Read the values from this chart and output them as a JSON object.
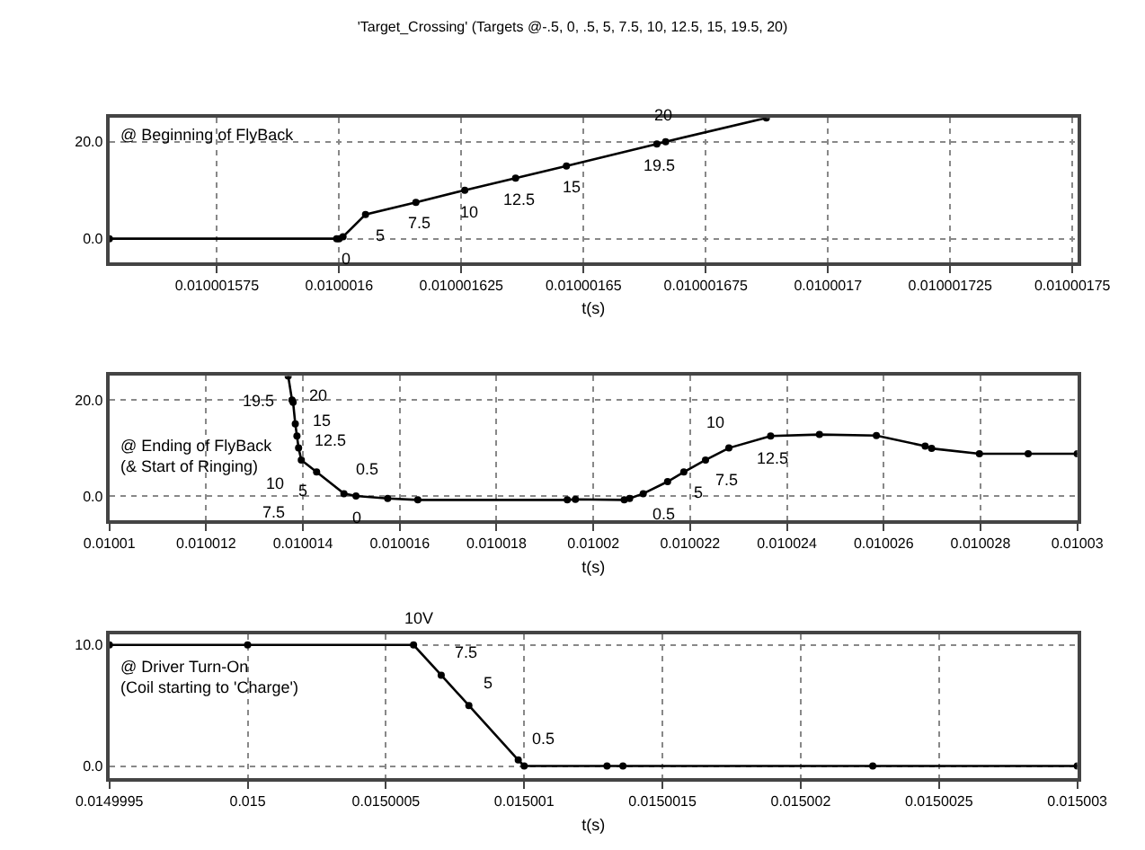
{
  "chart_data": [
    {
      "type": "line",
      "title": "'Target_Crossing' (Targets @-.5, 0, .5, 5, 7.5, 10, 12.5, 15, 19.5, 20)",
      "xlabel": "t(s)",
      "xlim": [
        0.010001553,
        0.010001751
      ],
      "xticks": [
        0.010001575,
        0.0100016,
        0.010001625,
        0.01000165,
        0.010001675,
        0.0100017,
        0.010001725,
        0.01000175
      ],
      "ylim": [
        -4.8,
        24.9
      ],
      "yticks": [
        {
          "value": 0,
          "label": "0.0"
        },
        {
          "value": 20,
          "label": "20.0"
        }
      ],
      "grid": true,
      "marker": "circle",
      "line_style": "solid",
      "series": [
        {
          "color": "#000000",
          "x": [
            0.010001553,
            0.0100015995,
            0.0100016,
            0.0100016008,
            0.0100016054,
            0.0100016157,
            0.0100016257,
            0.0100016361,
            0.0100016465,
            0.010001665,
            0.0100016668,
            0.0100016874
          ],
          "values": [
            0,
            0,
            0,
            0.4,
            5,
            7.5,
            10,
            12.5,
            15,
            19.5,
            20,
            24.9
          ]
        }
      ],
      "annotations": [
        "@ Beginning of FlyBack",
        {
          "text": "0",
          "x": 0.0100016,
          "y": 0
        },
        {
          "text": "5",
          "x": 0.0100016054,
          "y": 5
        },
        {
          "text": "7.5",
          "x": 0.0100016157,
          "y": 7.5
        },
        {
          "text": "10",
          "x": 0.0100016257,
          "y": 10
        },
        {
          "text": "12.5",
          "x": 0.0100016361,
          "y": 12.5
        },
        {
          "text": "15",
          "x": 0.0100016465,
          "y": 15
        },
        {
          "text": "19.5",
          "x": 0.010001665,
          "y": 19.5
        },
        {
          "text": "20",
          "x": 0.0100016668,
          "y": 20
        }
      ]
    },
    {
      "type": "line",
      "xlabel": "t(s)",
      "xlim": [
        0.01001,
        0.01003
      ],
      "xticks": [
        0.01001,
        0.010012,
        0.010014,
        0.010016,
        0.010018,
        0.01002,
        0.010022,
        0.010024,
        0.010026,
        0.010028,
        0.01003
      ],
      "ylim": [
        -5,
        25
      ],
      "yticks": [
        {
          "value": 0,
          "label": "0.0"
        },
        {
          "value": 20,
          "label": "20.0"
        }
      ],
      "grid": true,
      "marker": "circle",
      "line_style": "solid",
      "series": [
        {
          "color": "#000000",
          "x": [
            0.0100136949,
            0.010013774,
            0.0100137966,
            0.010013842,
            0.010013876,
            0.01001391,
            0.010013966,
            0.010014282,
            0.010014847,
            0.010015096,
            0.010015751,
            0.010016373,
            0.010019462,
            0.01001963,
            0.010020639,
            0.01002075,
            0.010021031,
            0.010021535,
            0.01002187,
            0.010022319,
            0.010022801,
            0.010023664,
            0.010024672,
            0.010025849,
            0.010026857,
            0.01002699,
            0.010027978,
            0.010028986,
            0.01003
          ],
          "values": [
            25,
            20,
            19.5,
            15,
            12.5,
            10,
            7.5,
            5,
            0.5,
            0,
            -0.5,
            -0.8,
            -0.8,
            -0.7,
            -0.8,
            -0.5,
            0.5,
            3,
            5,
            7.5,
            10,
            12.5,
            12.8,
            12.6,
            10.4,
            9.9,
            8.8,
            8.8,
            8.8
          ]
        }
      ],
      "annotations": [
        "@ Ending of FlyBack\n(& Start of Ringing)",
        {
          "text": "20",
          "x": 0.010013774,
          "y": 20
        },
        {
          "text": "19.5",
          "x": 0.0100137966,
          "y": 19.5
        },
        {
          "text": "15",
          "x": 0.010013842,
          "y": 15
        },
        {
          "text": "12.5",
          "x": 0.010013876,
          "y": 12.5
        },
        {
          "text": "10",
          "x": 0.01001391,
          "y": 10
        },
        {
          "text": "7.5",
          "x": 0.010013966,
          "y": 7.5
        },
        {
          "text": "5",
          "x": 0.010014282,
          "y": 5
        },
        {
          "text": "0.5",
          "x": 0.010014847,
          "y": 0.5
        },
        {
          "text": "0",
          "x": 0.010015096,
          "y": 0
        },
        {
          "text": "0.5",
          "x": 0.010021031,
          "y": 0.5
        },
        {
          "text": "5",
          "x": 0.01002187,
          "y": 5
        },
        {
          "text": "7.5",
          "x": 0.010022319,
          "y": 7.5
        },
        {
          "text": "10",
          "x": 0.010022801,
          "y": 10
        },
        {
          "text": "12.5",
          "x": 0.010023664,
          "y": 12.5
        }
      ]
    },
    {
      "type": "line",
      "xlabel": "t(s)",
      "xlim": [
        0.0149995,
        0.015003
      ],
      "xticks": [
        0.0149995,
        0.015,
        0.0150005,
        0.015001,
        0.0150015,
        0.015002,
        0.0150025,
        0.015003
      ],
      "ylim": [
        -1.0,
        10.9
      ],
      "yticks": [
        {
          "value": 0,
          "label": "0.0"
        },
        {
          "value": 10,
          "label": "10.0"
        }
      ],
      "grid": true,
      "marker": "circle",
      "line_style": "solid",
      "series": [
        {
          "color": "#000000",
          "x": [
            0.0149995,
            0.015,
            0.0150006,
            0.0150007,
            0.0150008,
            0.0150009786,
            0.015001,
            0.0150012995,
            0.0150013571,
            0.0150022605,
            0.015003
          ],
          "values": [
            10,
            10,
            10,
            7.5,
            5,
            0.5,
            0,
            0,
            0,
            0,
            0
          ]
        }
      ],
      "annotations": [
        "@ Driver Turn-On\n(Coil starting to 'Charge')",
        {
          "text": "10V",
          "x": 0.0150006,
          "y": 10
        },
        {
          "text": "7.5",
          "x": 0.0150007,
          "y": 7.5
        },
        {
          "text": "5",
          "x": 0.0150008,
          "y": 5
        },
        {
          "text": "0.5",
          "x": 0.0150009786,
          "y": 0.5
        }
      ]
    }
  ]
}
